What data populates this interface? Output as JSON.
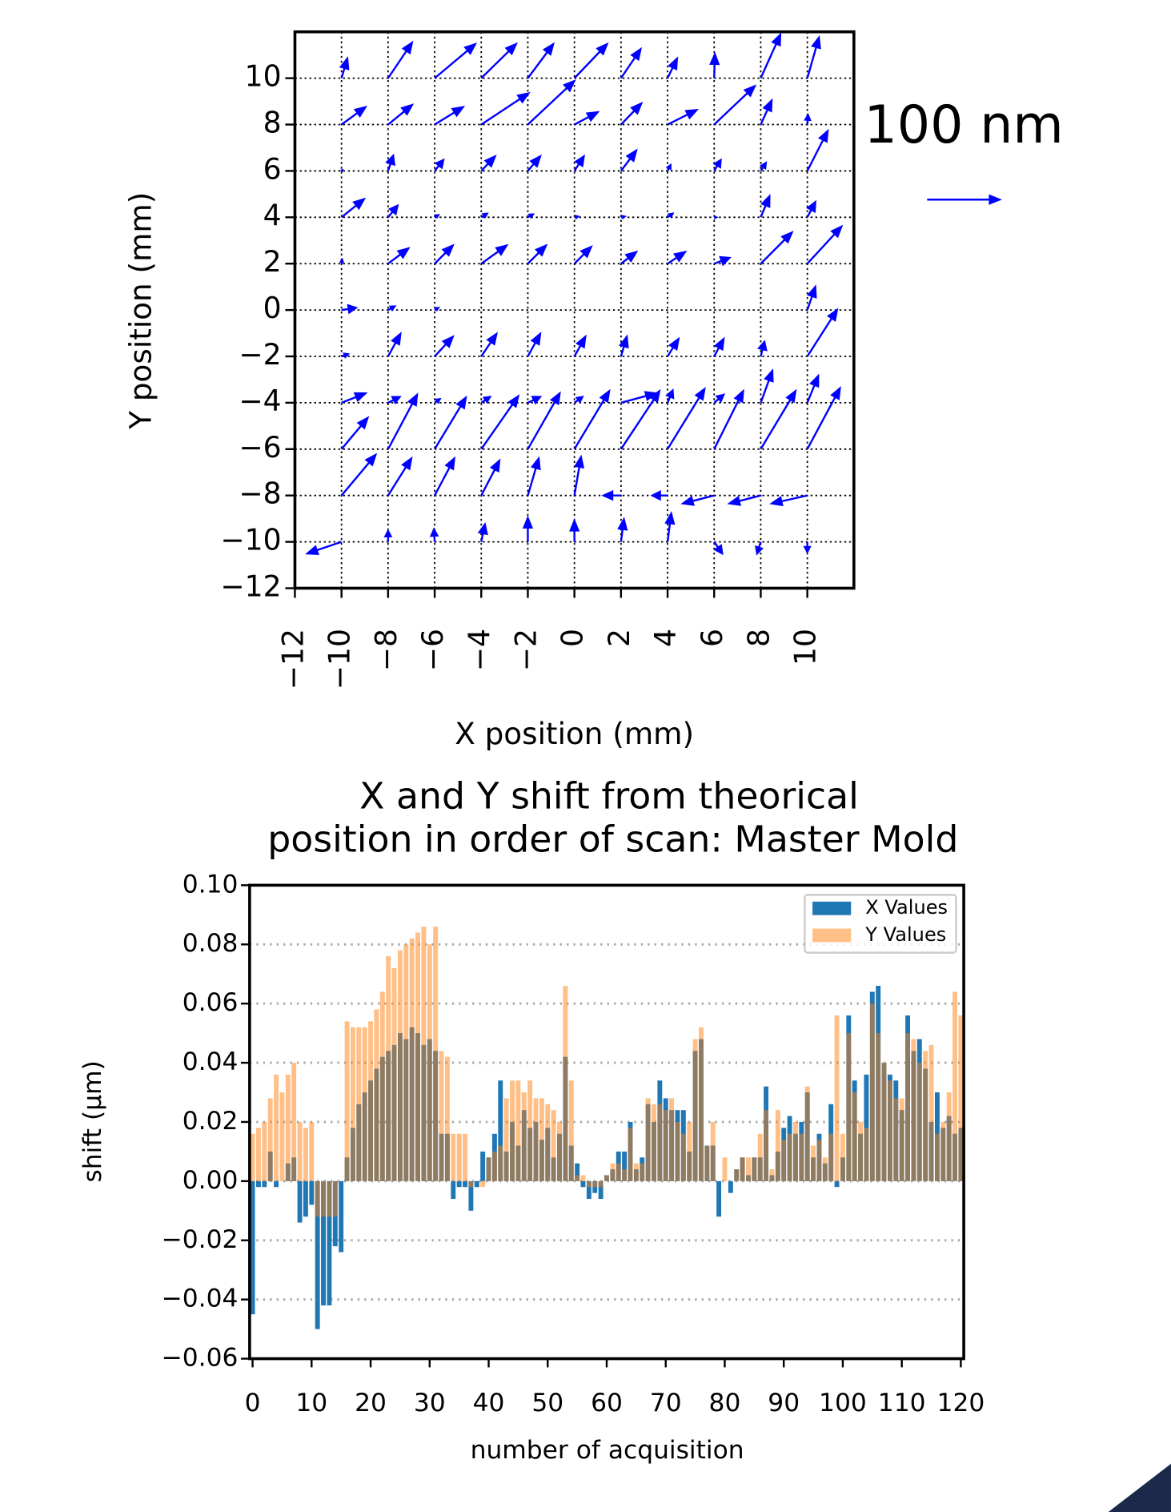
{
  "chart_data": [
    {
      "type": "quiver",
      "xlabel": "X position (mm)",
      "ylabel": "Y position (mm)",
      "color": "blue",
      "xlim": [
        -12,
        12
      ],
      "ylim": [
        -12,
        12
      ],
      "grid": true,
      "xticks": [
        {
          "value": -12,
          "label": "−12"
        },
        {
          "value": -10,
          "label": "−10"
        },
        {
          "value": -8,
          "label": "−8"
        },
        {
          "value": -6,
          "label": "−6"
        },
        {
          "value": -4,
          "label": "−4"
        },
        {
          "value": -2,
          "label": "−2"
        },
        0,
        2,
        4,
        6,
        8,
        10
      ],
      "yticks": [
        {
          "value": -12,
          "label": "−12"
        },
        {
          "value": -10,
          "label": "−10"
        },
        {
          "value": -8,
          "label": "−8"
        },
        {
          "value": -6,
          "label": "−6"
        },
        {
          "value": -4,
          "label": "−4"
        },
        {
          "value": -2,
          "label": "−2"
        },
        0,
        2,
        4,
        6,
        8,
        10
      ],
      "key_value": 100,
      "key_label": "100 nm",
      "x": [
        -10,
        -8,
        -6,
        -4,
        -2,
        0,
        2,
        4,
        6,
        8,
        10
      ],
      "y": [
        10,
        8,
        6,
        4,
        2,
        0,
        -2,
        -4,
        -6,
        -8,
        -10
      ],
      "u": [
        [
          8,
          33,
          56,
          48,
          35,
          45,
          27,
          13,
          1,
          27,
          16
        ],
        [
          33,
          33,
          39,
          65,
          64,
          32,
          28,
          40,
          56,
          15,
          1
        ],
        [
          1,
          7,
          12,
          19,
          17,
          13,
          21,
          4,
          9,
          7,
          28
        ],
        [
          31,
          13,
          5,
          8,
          7,
          5,
          5,
          7,
          3,
          12,
          11
        ],
        [
          1,
          28,
          25,
          35,
          25,
          23,
          21,
          24,
          21,
          43,
          47
        ],
        [
          20,
          9,
          5,
          0,
          0,
          0,
          0,
          0,
          0,
          0,
          11
        ],
        [
          9,
          17,
          25,
          21,
          17,
          15,
          8,
          15,
          13,
          5,
          41
        ],
        [
          33,
          16,
          7,
          12,
          17,
          11,
          48,
          7,
          13,
          16,
          15
        ],
        [
          36,
          40,
          43,
          51,
          44,
          48,
          53,
          51,
          40,
          48,
          45
        ],
        [
          47,
          32,
          27,
          25,
          15,
          9,
          -24,
          -21,
          -43,
          -43,
          -49
        ],
        [
          -47,
          0,
          -1,
          5,
          0,
          0,
          4,
          5,
          11,
          -5,
          0
        ]
      ],
      "v": [
        [
          27,
          49,
          47,
          47,
          47,
          47,
          40,
          27,
          33,
          60,
          56
        ],
        [
          24,
          27,
          24,
          43,
          60,
          17,
          29,
          20,
          53,
          33,
          13
        ],
        [
          1,
          21,
          15,
          20,
          20,
          20,
          28,
          8,
          15,
          11,
          55
        ],
        [
          25,
          16,
          3,
          5,
          4,
          1,
          1,
          5,
          0,
          29,
          21
        ],
        [
          5,
          21,
          25,
          25,
          25,
          23,
          16,
          16,
          8,
          43,
          51
        ],
        [
          3,
          5,
          3,
          0,
          0,
          0,
          0,
          0,
          0,
          0,
          32
        ],
        [
          3,
          31,
          27,
          31,
          31,
          27,
          27,
          24,
          24,
          20,
          64
        ],
        [
          13,
          8,
          5,
          8,
          8,
          8,
          13,
          17,
          11,
          44,
          37
        ],
        [
          43,
          75,
          71,
          73,
          77,
          80,
          80,
          83,
          80,
          80,
          84
        ],
        [
          56,
          51,
          51,
          48,
          51,
          53,
          0,
          0,
          -11,
          -11,
          -11
        ],
        [
          -16,
          15,
          17,
          24,
          33,
          29,
          31,
          39,
          -16,
          -16,
          -14
        ]
      ]
    },
    {
      "type": "bar",
      "title": [
        "X and Y shift from theorical",
        "position in order of scan: Master Mold"
      ],
      "xlabel": "number of acquisition",
      "ylabel": "shift (µm)",
      "xlim": [
        -0.5,
        120.5
      ],
      "ylim": [
        -0.06,
        0.1
      ],
      "xticks": [
        0,
        10,
        20,
        30,
        40,
        50,
        60,
        70,
        80,
        90,
        100,
        110,
        120
      ],
      "yticks": [
        {
          "value": -0.06,
          "label": "−0.06"
        },
        {
          "value": -0.04,
          "label": "−0.04"
        },
        {
          "value": -0.02,
          "label": "−0.02"
        },
        {
          "value": 0,
          "label": "0.00"
        },
        {
          "value": 0.02,
          "label": "0.02"
        },
        {
          "value": 0.04,
          "label": "0.04"
        },
        {
          "value": 0.06,
          "label": "0.06"
        },
        {
          "value": 0.08,
          "label": "0.08"
        },
        {
          "value": 0.1,
          "label": "0.10"
        }
      ],
      "grid": true,
      "legend": "upper right",
      "series": [
        {
          "name": "X Values",
          "color": "#1f77b4",
          "alpha": 1,
          "values": [
            -0.045,
            -0.002,
            -0.002,
            0.01,
            -0.002,
            0.0,
            0.006,
            0.008,
            -0.014,
            -0.012,
            -0.008,
            -0.05,
            -0.042,
            -0.042,
            -0.022,
            -0.024,
            0.008,
            0.018,
            0.026,
            0.03,
            0.034,
            0.038,
            0.042,
            0.044,
            0.046,
            0.05,
            0.048,
            0.052,
            0.05,
            0.046,
            0.048,
            0.044,
            0.016,
            0.016,
            -0.006,
            -0.002,
            -0.002,
            -0.01,
            -0.002,
            0.01,
            0.008,
            0.016,
            0.034,
            0.01,
            0.02,
            0.012,
            0.024,
            0.018,
            0.02,
            0.014,
            0.018,
            0.008,
            0.016,
            0.042,
            0.012,
            0.006,
            -0.002,
            -0.006,
            -0.004,
            -0.006,
            0.002,
            0.004,
            0.01,
            0.01,
            0.02,
            0.004,
            0.008,
            0.026,
            0.02,
            0.034,
            0.028,
            0.024,
            0.024,
            0.024,
            0.01,
            0.044,
            0.048,
            0.012,
            0.012,
            -0.012,
            0.0,
            -0.004,
            0.004,
            0.008,
            0.002,
            0.008,
            0.008,
            0.032,
            0.002,
            0.01,
            0.018,
            0.022,
            0.016,
            0.02,
            0.03,
            0.008,
            0.016,
            0.006,
            0.026,
            -0.002,
            0.008,
            0.056,
            0.034,
            0.016,
            0.036,
            0.064,
            0.066,
            0.04,
            0.036,
            0.034,
            0.024,
            0.056,
            0.044,
            0.048,
            0.038,
            0.02,
            0.03,
            0.018,
            0.022,
            0.016,
            0.018
          ]
        },
        {
          "name": "Y Values",
          "color": "#ff7f0e",
          "alpha": 0.5,
          "values": [
            0.016,
            0.018,
            0.02,
            0.028,
            0.036,
            0.03,
            0.036,
            0.04,
            0.02,
            0.018,
            0.02,
            -0.012,
            -0.012,
            -0.012,
            -0.012,
            0.0,
            0.054,
            0.052,
            0.052,
            0.052,
            0.054,
            0.058,
            0.064,
            0.076,
            0.072,
            0.078,
            0.08,
            0.082,
            0.084,
            0.086,
            0.08,
            0.086,
            0.044,
            0.042,
            0.016,
            0.016,
            0.016,
            -0.002,
            0.0,
            -0.002,
            0.008,
            0.01,
            0.012,
            0.028,
            0.034,
            0.034,
            0.03,
            0.034,
            0.028,
            0.028,
            0.026,
            0.024,
            0.02,
            0.066,
            0.034,
            0.002,
            0.002,
            -0.002,
            -0.002,
            -0.002,
            0.002,
            0.006,
            0.006,
            0.004,
            0.018,
            0.006,
            0.006,
            0.028,
            0.026,
            0.026,
            0.024,
            0.028,
            0.02,
            0.016,
            0.02,
            0.048,
            0.052,
            0.012,
            0.02,
            0.0,
            0.008,
            0.0,
            0.004,
            0.008,
            0.008,
            0.008,
            0.016,
            0.024,
            0.004,
            0.024,
            0.014,
            0.016,
            0.02,
            0.016,
            0.032,
            0.012,
            0.014,
            0.008,
            0.016,
            0.056,
            0.016,
            0.05,
            0.03,
            0.02,
            0.018,
            0.06,
            0.05,
            0.04,
            0.034,
            0.028,
            0.028,
            0.05,
            0.048,
            0.04,
            0.044,
            0.046,
            0.016,
            0.02,
            0.03,
            0.064,
            0.056
          ]
        }
      ]
    }
  ]
}
